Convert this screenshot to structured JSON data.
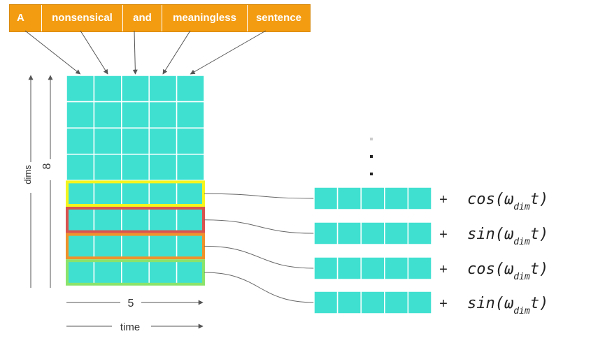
{
  "tokens": [
    "A",
    "nonsensical",
    "and",
    "meaningless",
    "sentence"
  ],
  "matrix": {
    "rows": 8,
    "cols": 5
  },
  "labels": {
    "dims": "dims",
    "dims_count": "8",
    "time_count": "5",
    "time": "time"
  },
  "highlights": [
    {
      "row": 4,
      "color": "#f5f51e"
    },
    {
      "row": 5,
      "color": "#d9534f"
    },
    {
      "row": 6,
      "color": "#f0922b"
    },
    {
      "row": 7,
      "color": "#8be36b"
    }
  ],
  "encodings": [
    {
      "func": "cos",
      "arg": "ω",
      "sub": "dim",
      "var": "t"
    },
    {
      "func": "sin",
      "arg": "ω",
      "sub": "dim",
      "var": "t"
    },
    {
      "func": "cos",
      "arg": "ω",
      "sub": "dim",
      "var": "t"
    },
    {
      "func": "sin",
      "arg": "ω",
      "sub": "dim",
      "var": "t"
    }
  ],
  "plus_sign": "+",
  "colors": {
    "cell": "#40e0d0",
    "token_bg": "#f39c12"
  }
}
